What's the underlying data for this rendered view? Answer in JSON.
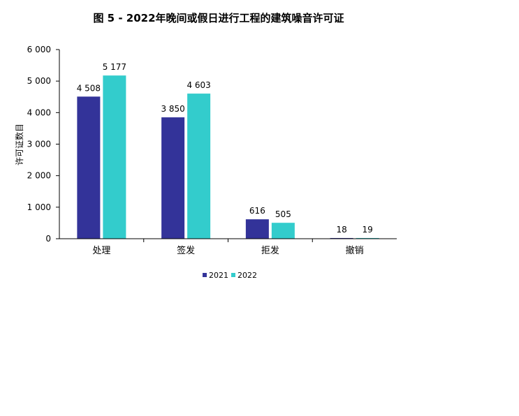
{
  "chart_data": {
    "type": "bar",
    "title": "图 5 - 2022年晚间或假日进行工程的建筑噪音许可证",
    "xlabel": "",
    "ylabel": "许可证数目",
    "categories": [
      "处理",
      "签发",
      "拒发",
      "撤销"
    ],
    "series": [
      {
        "name": "2021",
        "values": [
          4508,
          3850,
          616,
          18
        ],
        "labels": [
          "4 508",
          "3 850",
          "616",
          "18"
        ],
        "color": "#333399"
      },
      {
        "name": "2022",
        "values": [
          5177,
          4603,
          505,
          19
        ],
        "labels": [
          "5 177",
          "4 603",
          "505",
          "19"
        ],
        "color": "#33CCCC"
      }
    ],
    "ylim": [
      0,
      6000
    ],
    "yticks": [
      0,
      1000,
      2000,
      3000,
      4000,
      5000,
      6000
    ],
    "ytick_labels": [
      "0",
      "1 000",
      "2 000",
      "3 000",
      "4 000",
      "5 000",
      "6 000"
    ],
    "grid": false,
    "legend_position": "bottom"
  }
}
